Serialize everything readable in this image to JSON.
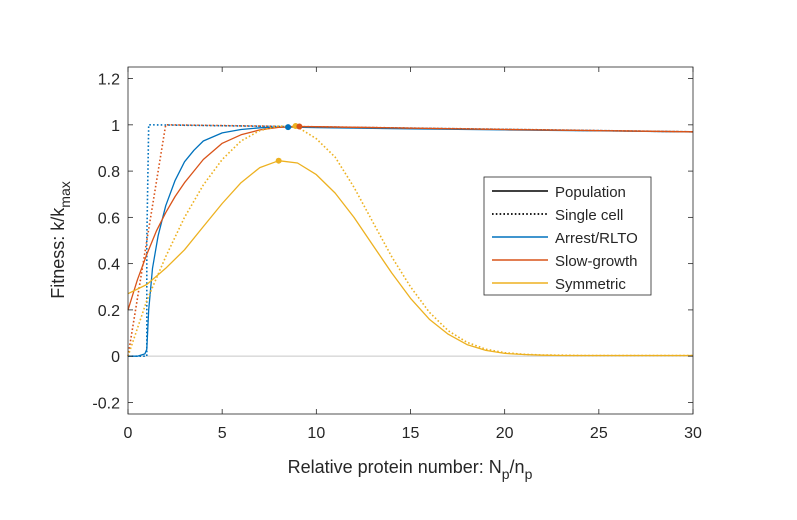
{
  "chart_data": {
    "type": "line",
    "title": "",
    "xlabel": "Relative protein number: N",
    "xlabel_sub1": "p",
    "xlabel_mid": "/n",
    "xlabel_sub2": "p",
    "ylabel": "Fitness:  k/k",
    "ylabel_sub": "max",
    "xlim": [
      0,
      30
    ],
    "ylim": [
      -0.25,
      1.25
    ],
    "xticks": [
      0,
      5,
      10,
      15,
      20,
      25,
      30
    ],
    "yticks": [
      -0.2,
      0,
      0.2,
      0.4,
      0.6,
      0.8,
      1,
      1.2
    ],
    "xtick_labels": [
      "0",
      "5",
      "10",
      "15",
      "20",
      "25",
      "30"
    ],
    "ytick_labels": [
      "-0.2",
      "0",
      "0.2",
      "0.4",
      "0.6",
      "0.8",
      "1",
      "1.2"
    ],
    "grid": false,
    "zero_line": true,
    "legend": {
      "position": "right",
      "entries": [
        {
          "label": "Population",
          "color": "#000000",
          "style": "solid"
        },
        {
          "label": "Single cell",
          "color": "#000000",
          "style": "dotted"
        },
        {
          "label": "Arrest/RLTO",
          "color": "#0072BD",
          "style": "solid"
        },
        {
          "label": "Slow-growth",
          "color": "#D95319",
          "style": "solid"
        },
        {
          "label": "Symmetric",
          "color": "#EDB120",
          "style": "solid"
        }
      ]
    },
    "series": [
      {
        "name": "Arrest/RLTO population",
        "color": "#0072BD",
        "style": "solid",
        "x": [
          0,
          0.5,
          0.9,
          1.0,
          1.1,
          1.3,
          1.6,
          2.0,
          2.5,
          3.0,
          3.5,
          4.0,
          5.0,
          6.0,
          7.0,
          8.0,
          8.5,
          10,
          15,
          20,
          25,
          30
        ],
        "y": [
          0.0,
          0.0,
          0.01,
          0.03,
          0.2,
          0.38,
          0.52,
          0.65,
          0.76,
          0.84,
          0.89,
          0.93,
          0.965,
          0.98,
          0.987,
          0.99,
          0.99,
          0.988,
          0.983,
          0.978,
          0.974,
          0.969
        ]
      },
      {
        "name": "Arrest/RLTO single cell",
        "color": "#0072BD",
        "style": "dotted",
        "x": [
          0,
          1.0,
          1.0,
          1.1,
          30
        ],
        "y": [
          0.0,
          0.0,
          0.5,
          1.0,
          0.97
        ]
      },
      {
        "name": "Slow-growth population",
        "color": "#D95319",
        "style": "solid",
        "x": [
          0,
          0.5,
          1.0,
          1.5,
          2.0,
          2.5,
          3.0,
          3.5,
          4.0,
          5.0,
          6.0,
          7.0,
          8.0,
          9.0,
          10,
          15,
          20,
          25,
          30
        ],
        "y": [
          0.2,
          0.33,
          0.44,
          0.54,
          0.62,
          0.69,
          0.75,
          0.8,
          0.85,
          0.92,
          0.957,
          0.978,
          0.989,
          0.993,
          0.992,
          0.986,
          0.98,
          0.975,
          0.97
        ]
      },
      {
        "name": "Slow-growth single cell",
        "color": "#D95319",
        "style": "dotted",
        "x": [
          0,
          2.0,
          30
        ],
        "y": [
          0.0,
          1.0,
          0.97
        ]
      },
      {
        "name": "Symmetric population",
        "color": "#EDB120",
        "style": "solid",
        "x": [
          0,
          1,
          2,
          3,
          4,
          5,
          6,
          7,
          8,
          9,
          10,
          11,
          12,
          13,
          14,
          15,
          16,
          17,
          18,
          19,
          20,
          21,
          22,
          23,
          24,
          25,
          26,
          27,
          28,
          29,
          30
        ],
        "y": [
          0.27,
          0.31,
          0.38,
          0.46,
          0.56,
          0.66,
          0.75,
          0.815,
          0.845,
          0.835,
          0.785,
          0.705,
          0.6,
          0.48,
          0.36,
          0.25,
          0.16,
          0.095,
          0.05,
          0.025,
          0.012,
          0.007,
          0.004,
          0.003,
          0.003,
          0.003,
          0.003,
          0.003,
          0.003,
          0.003,
          0.003
        ]
      },
      {
        "name": "Symmetric single cell",
        "color": "#EDB120",
        "style": "dotted",
        "x": [
          0,
          1,
          2,
          3,
          4,
          5,
          6,
          7,
          8,
          9,
          10,
          11,
          12,
          13,
          14,
          15,
          16,
          17,
          18,
          19,
          20,
          21,
          22,
          23,
          24,
          25,
          26,
          27,
          28,
          29,
          30
        ],
        "y": [
          0.0,
          0.24,
          0.43,
          0.6,
          0.74,
          0.85,
          0.93,
          0.975,
          0.995,
          0.99,
          0.94,
          0.86,
          0.73,
          0.58,
          0.43,
          0.3,
          0.19,
          0.11,
          0.06,
          0.03,
          0.015,
          0.008,
          0.005,
          0.004,
          0.003,
          0.003,
          0.003,
          0.003,
          0.003,
          0.003,
          0.003
        ]
      }
    ],
    "markers": [
      {
        "name": "Symmetric optimum",
        "color": "#EDB120",
        "x": 8.0,
        "y": 0.845
      },
      {
        "name": "Arrest/RLTO optimum",
        "color": "#0072BD",
        "x": 8.5,
        "y": 0.99
      },
      {
        "name": "Symmetric single-cell optimum",
        "color": "#EDB120",
        "x": 8.9,
        "y": 0.995
      },
      {
        "name": "Slow-growth optimum",
        "color": "#D95319",
        "x": 9.1,
        "y": 0.993
      }
    ]
  }
}
